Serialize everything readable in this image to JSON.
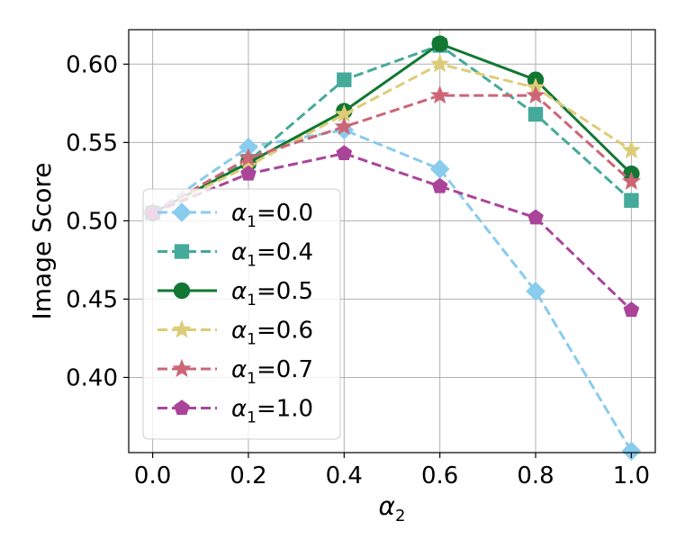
{
  "chart_data": {
    "type": "line",
    "title": "",
    "xlabel": "α",
    "xlabel_sub": "2",
    "ylabel": "Image Score",
    "xlim": [
      -0.05,
      1.05
    ],
    "ylim": [
      0.352,
      0.622
    ],
    "x_ticks": [
      0.0,
      0.2,
      0.4,
      0.6,
      0.8,
      1.0
    ],
    "x_tick_labels": [
      "0.0",
      "0.2",
      "0.4",
      "0.6",
      "0.8",
      "1.0"
    ],
    "y_ticks": [
      0.4,
      0.45,
      0.5,
      0.55,
      0.6
    ],
    "y_tick_labels": [
      "0.40",
      "0.45",
      "0.50",
      "0.55",
      "0.60"
    ],
    "grid": true,
    "legend_position": "lower-left",
    "x": [
      0.0,
      0.2,
      0.4,
      0.6,
      0.8,
      1.0
    ],
    "series": [
      {
        "name": "α",
        "name_sub": "1",
        "name_value": "=0.0",
        "color": "#88CCEE",
        "marker": "diamond",
        "dashed": true,
        "values": [
          0.505,
          0.547,
          0.558,
          0.533,
          0.455,
          0.353
        ]
      },
      {
        "name": "α",
        "name_sub": "1",
        "name_value": "=0.4",
        "color": "#44AA99",
        "marker": "square",
        "dashed": true,
        "values": [
          0.505,
          0.538,
          0.59,
          0.612,
          0.568,
          0.513
        ]
      },
      {
        "name": "α",
        "name_sub": "1",
        "name_value": "=0.5",
        "color": "#117733",
        "marker": "circle",
        "dashed": false,
        "values": [
          0.505,
          0.537,
          0.57,
          0.613,
          0.59,
          0.53
        ]
      },
      {
        "name": "α",
        "name_sub": "1",
        "name_value": "=0.6",
        "color": "#DDCC77",
        "marker": "star",
        "dashed": true,
        "values": [
          0.505,
          0.535,
          0.568,
          0.6,
          0.585,
          0.545
        ]
      },
      {
        "name": "α",
        "name_sub": "1",
        "name_value": "=0.7",
        "color": "#CC6677",
        "marker": "star",
        "dashed": true,
        "values": [
          0.505,
          0.54,
          0.56,
          0.58,
          0.58,
          0.525
        ]
      },
      {
        "name": "α",
        "name_sub": "1",
        "name_value": "=1.0",
        "color": "#AA4499",
        "marker": "pentagon",
        "dashed": true,
        "values": [
          0.505,
          0.53,
          0.543,
          0.522,
          0.502,
          0.443
        ]
      }
    ]
  }
}
